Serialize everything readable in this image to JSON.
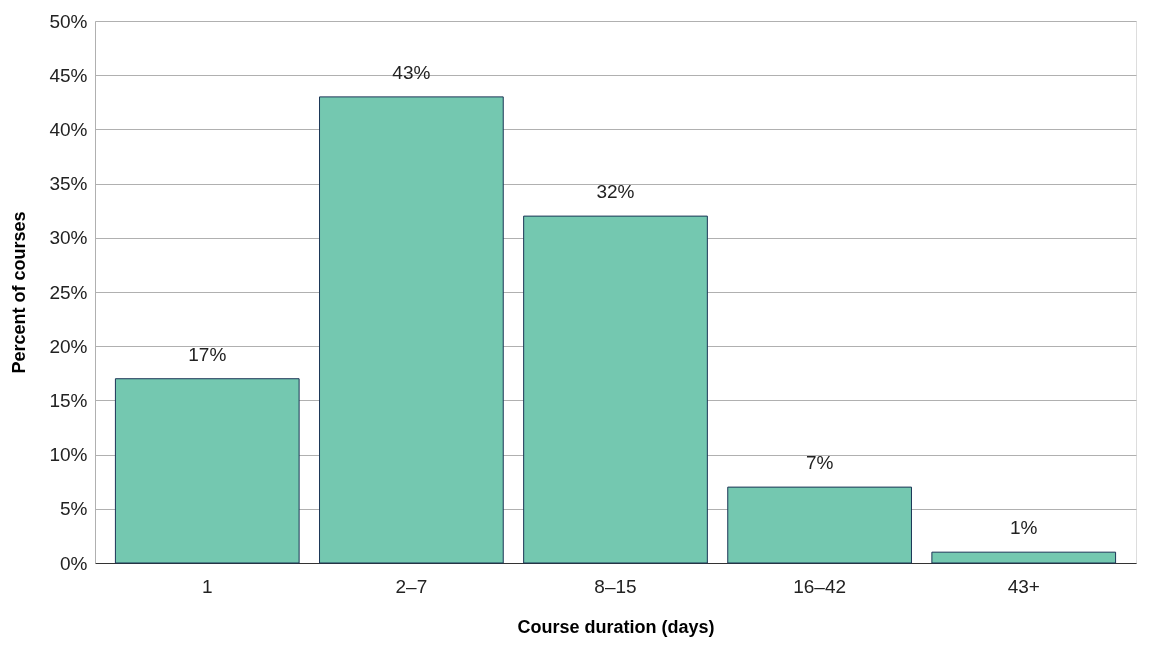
{
  "chart_data": {
    "type": "bar",
    "xlabel": "Course duration (days)",
    "ylabel": "Percent of courses",
    "categories": [
      "1",
      "2–7",
      "8–15",
      "16–42",
      "43+"
    ],
    "values": [
      17,
      43,
      32,
      7,
      1
    ],
    "value_labels": [
      "17%",
      "43%",
      "32%",
      "7%",
      "1%"
    ],
    "color": "#74c8b0",
    "ylim": [
      0,
      50
    ],
    "yticks": [
      {
        "value": 0,
        "label": "0%"
      },
      {
        "value": 5,
        "label": "5%"
      },
      {
        "value": 10,
        "label": "10%"
      },
      {
        "value": 15,
        "label": "15%"
      },
      {
        "value": 20,
        "label": "20%"
      },
      {
        "value": 25,
        "label": "25%"
      },
      {
        "value": 30,
        "label": "30%"
      },
      {
        "value": 35,
        "label": "35%"
      },
      {
        "value": 40,
        "label": "40%"
      },
      {
        "value": 45,
        "label": "45%"
      },
      {
        "value": 50,
        "label": "50%"
      }
    ],
    "grid": "y"
  }
}
